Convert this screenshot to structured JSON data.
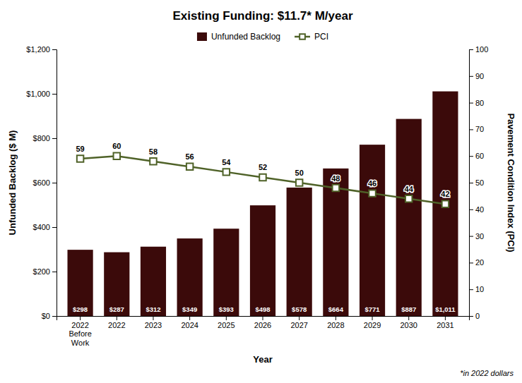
{
  "chart_data": {
    "type": "bar",
    "title": "Existing Funding: $11.7* M/year",
    "x_label": "Year",
    "y_label": "Unfunded Backlog ($ M)",
    "y2_label": "Pavement Condition Index (PCI)",
    "categories": [
      "2022\nBefore\nWork",
      "2022",
      "2023",
      "2024",
      "2025",
      "2026",
      "2027",
      "2028",
      "2029",
      "2030",
      "2031"
    ],
    "series": [
      {
        "name": "Unfunded Backlog",
        "type": "bar",
        "color": "#3B0A0A",
        "values": [
          298,
          287,
          312,
          349,
          393,
          498,
          578,
          664,
          771,
          887,
          1011
        ],
        "value_labels": [
          "$298",
          "$287",
          "$312",
          "$349",
          "$393",
          "$498",
          "$578",
          "$664",
          "$771",
          "$887",
          "$1,011"
        ]
      },
      {
        "name": "PCI",
        "type": "line",
        "axis": "y2",
        "color": "#4F6228",
        "marker": "square",
        "values": [
          59,
          60,
          58,
          56,
          54,
          52,
          50,
          48,
          46,
          44,
          42
        ]
      }
    ],
    "ylim": [
      0,
      1200
    ],
    "yticks": [
      {
        "value": 0,
        "label": "$0"
      },
      {
        "value": 200,
        "label": "$200"
      },
      {
        "value": 400,
        "label": "$400"
      },
      {
        "value": 600,
        "label": "$600"
      },
      {
        "value": 800,
        "label": "$800"
      },
      {
        "value": 1000,
        "label": "$1,000"
      },
      {
        "value": 1200,
        "label": "$1,200"
      }
    ],
    "y2lim": [
      0,
      100
    ],
    "y2ticks": [
      0,
      10,
      20,
      30,
      40,
      50,
      60,
      70,
      80,
      90,
      100
    ],
    "data_labels": true,
    "grid": false,
    "legend": "upper center",
    "annotations": [
      "*in 2022 dollars"
    ]
  }
}
